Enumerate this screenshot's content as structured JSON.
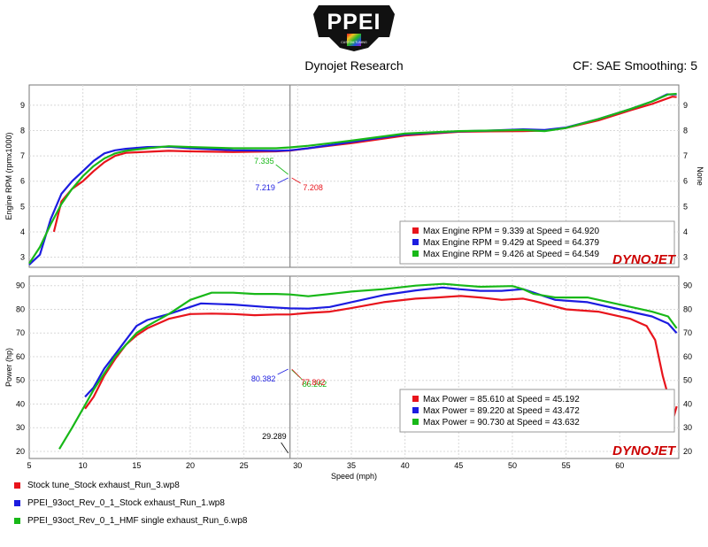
{
  "header": {
    "brand": "PPEI",
    "brand_sub": "CUSTOM TUNING",
    "title": "Dynojet Research",
    "cf": "CF: SAE Smoothing: 5"
  },
  "colors": {
    "red": "#e8141c",
    "blue": "#1c1ce0",
    "green": "#18b818"
  },
  "watermark": "DYNOJET",
  "cursor": {
    "x": 29.289,
    "label": "29.289"
  },
  "legend": [
    {
      "label": "Stock tune_Stock exhaust_Run_3.wp8",
      "color": "#e8141c"
    },
    {
      "label": "PPEI_93oct_Rev_0_1_Stock exhaust_Run_1.wp8",
      "color": "#1c1ce0"
    },
    {
      "label": "PPEI_93oct_Rev_0_1_HMF single exhaust_Run_6.wp8",
      "color": "#18b818"
    }
  ],
  "chart_data": [
    {
      "type": "line",
      "ylabel": "Engine RPM (rpmx1000)",
      "ylabel_right": "None",
      "xlim": [
        5,
        65.5
      ],
      "ylim": [
        2.6,
        9.8
      ],
      "yticks": [
        3,
        4,
        5,
        6,
        7,
        8,
        9
      ],
      "grid": true,
      "cursor_values": [
        {
          "text": "7.335",
          "color": "#18b818"
        },
        {
          "text": "7.219",
          "color": "#1c1ce0"
        },
        {
          "text": "7.208",
          "color": "#e8141c"
        }
      ],
      "summary": [
        {
          "text": "Max Engine RPM = 9.339 at Speed = 64.920",
          "color": "#e8141c"
        },
        {
          "text": "Max Engine RPM = 9.429 at Speed = 64.379",
          "color": "#1c1ce0"
        },
        {
          "text": "Max Engine RPM = 9.426 at Speed = 64.549",
          "color": "#18b818"
        }
      ],
      "series": [
        {
          "name": "Stock tune_Stock exhaust_Run_3.wp8",
          "color": "#e8141c",
          "points": [
            [
              7.3,
              4.0
            ],
            [
              8,
              5.2
            ],
            [
              9,
              5.7
            ],
            [
              10,
              6.0
            ],
            [
              11,
              6.4
            ],
            [
              12,
              6.75
            ],
            [
              13,
              7.0
            ],
            [
              14,
              7.12
            ],
            [
              16,
              7.16
            ],
            [
              18,
              7.2
            ],
            [
              20,
              7.18
            ],
            [
              24,
              7.15
            ],
            [
              28,
              7.18
            ],
            [
              29.3,
              7.208
            ],
            [
              31,
              7.3
            ],
            [
              35,
              7.5
            ],
            [
              40,
              7.8
            ],
            [
              45,
              7.95
            ],
            [
              48,
              7.97
            ],
            [
              51,
              7.98
            ],
            [
              53,
              8.0
            ],
            [
              55,
              8.1
            ],
            [
              58,
              8.4
            ],
            [
              61,
              8.8
            ],
            [
              63,
              9.05
            ],
            [
              64.9,
              9.339
            ],
            [
              65.3,
              9.32
            ]
          ]
        },
        {
          "name": "PPEI_93oct_Rev_0_1_Stock exhaust_Run_1.wp8",
          "color": "#1c1ce0",
          "points": [
            [
              5,
              2.7
            ],
            [
              6,
              3.1
            ],
            [
              7,
              4.5
            ],
            [
              8,
              5.5
            ],
            [
              9,
              6.0
            ],
            [
              10,
              6.4
            ],
            [
              11,
              6.8
            ],
            [
              12,
              7.1
            ],
            [
              13,
              7.22
            ],
            [
              14,
              7.28
            ],
            [
              16,
              7.35
            ],
            [
              18,
              7.36
            ],
            [
              20,
              7.3
            ],
            [
              24,
              7.22
            ],
            [
              28,
              7.2
            ],
            [
              29.3,
              7.219
            ],
            [
              31,
              7.3
            ],
            [
              35,
              7.55
            ],
            [
              40,
              7.85
            ],
            [
              45,
              7.97
            ],
            [
              48,
              8.0
            ],
            [
              51,
              8.05
            ],
            [
              53,
              8.02
            ],
            [
              55,
              8.12
            ],
            [
              58,
              8.45
            ],
            [
              61,
              8.85
            ],
            [
              63,
              9.15
            ],
            [
              64.4,
              9.429
            ],
            [
              65.3,
              9.43
            ]
          ]
        },
        {
          "name": "PPEI_93oct_Rev_0_1_HMF single exhaust_Run_6.wp8",
          "color": "#18b818",
          "points": [
            [
              5,
              2.75
            ],
            [
              6,
              3.4
            ],
            [
              7,
              4.3
            ],
            [
              8,
              5.1
            ],
            [
              9,
              5.7
            ],
            [
              10,
              6.2
            ],
            [
              11,
              6.6
            ],
            [
              12,
              6.9
            ],
            [
              13,
              7.1
            ],
            [
              14,
              7.2
            ],
            [
              16,
              7.3
            ],
            [
              18,
              7.38
            ],
            [
              20,
              7.35
            ],
            [
              24,
              7.3
            ],
            [
              28,
              7.3
            ],
            [
              29.3,
              7.335
            ],
            [
              31,
              7.4
            ],
            [
              35,
              7.6
            ],
            [
              40,
              7.88
            ],
            [
              45,
              7.98
            ],
            [
              48,
              8.0
            ],
            [
              51,
              8.02
            ],
            [
              53,
              7.98
            ],
            [
              55,
              8.1
            ],
            [
              58,
              8.45
            ],
            [
              61,
              8.85
            ],
            [
              63,
              9.15
            ],
            [
              64.5,
              9.426
            ],
            [
              65.3,
              9.45
            ]
          ]
        }
      ]
    },
    {
      "type": "line",
      "ylabel": "Power (hp)",
      "xlabel": "Speed (mph)",
      "xlim": [
        5,
        65.5
      ],
      "ylim": [
        17,
        94
      ],
      "xticks": [
        5,
        10,
        15,
        20,
        25,
        30,
        35,
        40,
        45,
        50,
        55,
        60
      ],
      "yticks": [
        20,
        30,
        40,
        50,
        60,
        70,
        80,
        90
      ],
      "grid": true,
      "cursor_values": [
        {
          "text": "86.262",
          "color": "#18b818"
        },
        {
          "text": "80.382",
          "color": "#1c1ce0"
        },
        {
          "text": "77.802",
          "color": "#e8141c"
        }
      ],
      "summary": [
        {
          "text": "Max Power = 85.610 at Speed = 45.192",
          "color": "#e8141c"
        },
        {
          "text": "Max Power = 89.220 at Speed = 43.472",
          "color": "#1c1ce0"
        },
        {
          "text": "Max Power = 90.730 at Speed = 43.632",
          "color": "#18b818"
        }
      ],
      "series": [
        {
          "name": "Stock tune_Stock exhaust_Run_3.wp8",
          "color": "#e8141c",
          "points": [
            [
              10.2,
              38
            ],
            [
              11,
              43
            ],
            [
              12,
              52
            ],
            [
              13,
              59
            ],
            [
              14,
              65
            ],
            [
              15,
              69
            ],
            [
              16,
              72
            ],
            [
              18,
              76
            ],
            [
              20,
              78
            ],
            [
              22,
              78.2
            ],
            [
              24,
              78
            ],
            [
              26,
              77.5
            ],
            [
              28,
              77.8
            ],
            [
              29.3,
              77.802
            ],
            [
              31,
              78.5
            ],
            [
              33,
              79
            ],
            [
              35,
              80.5
            ],
            [
              38,
              83
            ],
            [
              41,
              84.5
            ],
            [
              43,
              85
            ],
            [
              45.2,
              85.61
            ],
            [
              47,
              85
            ],
            [
              49,
              84
            ],
            [
              51,
              84.5
            ],
            [
              52,
              83.5
            ],
            [
              55,
              80
            ],
            [
              58,
              79
            ],
            [
              61,
              76
            ],
            [
              62.5,
              73
            ],
            [
              63.3,
              67
            ],
            [
              64,
              52
            ],
            [
              64.6,
              42
            ],
            [
              65,
              34
            ],
            [
              65.3,
              39
            ]
          ]
        },
        {
          "name": "PPEI_93oct_Rev_0_1_Stock exhaust_Run_1.wp8",
          "color": "#1c1ce0",
          "points": [
            [
              10.2,
              43
            ],
            [
              11,
              47
            ],
            [
              12,
              55
            ],
            [
              13,
              61
            ],
            [
              14,
              67
            ],
            [
              15,
              73
            ],
            [
              16,
              75.5
            ],
            [
              18,
              78
            ],
            [
              20,
              81
            ],
            [
              21,
              82.5
            ],
            [
              24,
              82
            ],
            [
              27,
              81
            ],
            [
              29.3,
              80.382
            ],
            [
              31,
              80.3
            ],
            [
              33,
              81
            ],
            [
              35,
              83
            ],
            [
              38,
              86
            ],
            [
              41,
              88
            ],
            [
              43.5,
              89.22
            ],
            [
              45,
              88.5
            ],
            [
              47,
              87.8
            ],
            [
              49,
              87.8
            ],
            [
              51,
              88.5
            ],
            [
              52,
              87
            ],
            [
              54,
              84
            ],
            [
              57,
              83
            ],
            [
              60,
              80
            ],
            [
              63,
              77
            ],
            [
              64.5,
              74
            ],
            [
              65.3,
              70
            ]
          ]
        },
        {
          "name": "PPEI_93oct_Rev_0_1_HMF single exhaust_Run_6.wp8",
          "color": "#18b818",
          "points": [
            [
              7.8,
              21
            ],
            [
              9,
              30
            ],
            [
              10,
              38
            ],
            [
              11,
              46
            ],
            [
              12,
              53
            ],
            [
              13,
              60
            ],
            [
              14,
              65
            ],
            [
              15,
              70
            ],
            [
              16,
              73
            ],
            [
              18,
              78
            ],
            [
              20,
              84
            ],
            [
              22,
              87
            ],
            [
              24,
              87
            ],
            [
              26,
              86.5
            ],
            [
              28,
              86.5
            ],
            [
              29.3,
              86.262
            ],
            [
              31,
              85.5
            ],
            [
              33,
              86.5
            ],
            [
              35,
              87.5
            ],
            [
              38,
              88.5
            ],
            [
              41,
              90
            ],
            [
              43.6,
              90.73
            ],
            [
              45,
              90.2
            ],
            [
              47,
              89.5
            ],
            [
              50,
              89.8
            ],
            [
              51,
              88.5
            ],
            [
              52,
              86.5
            ],
            [
              54,
              85
            ],
            [
              57,
              85
            ],
            [
              60,
              82
            ],
            [
              63,
              79
            ],
            [
              64.5,
              77
            ],
            [
              65.3,
              72
            ]
          ]
        }
      ]
    }
  ]
}
